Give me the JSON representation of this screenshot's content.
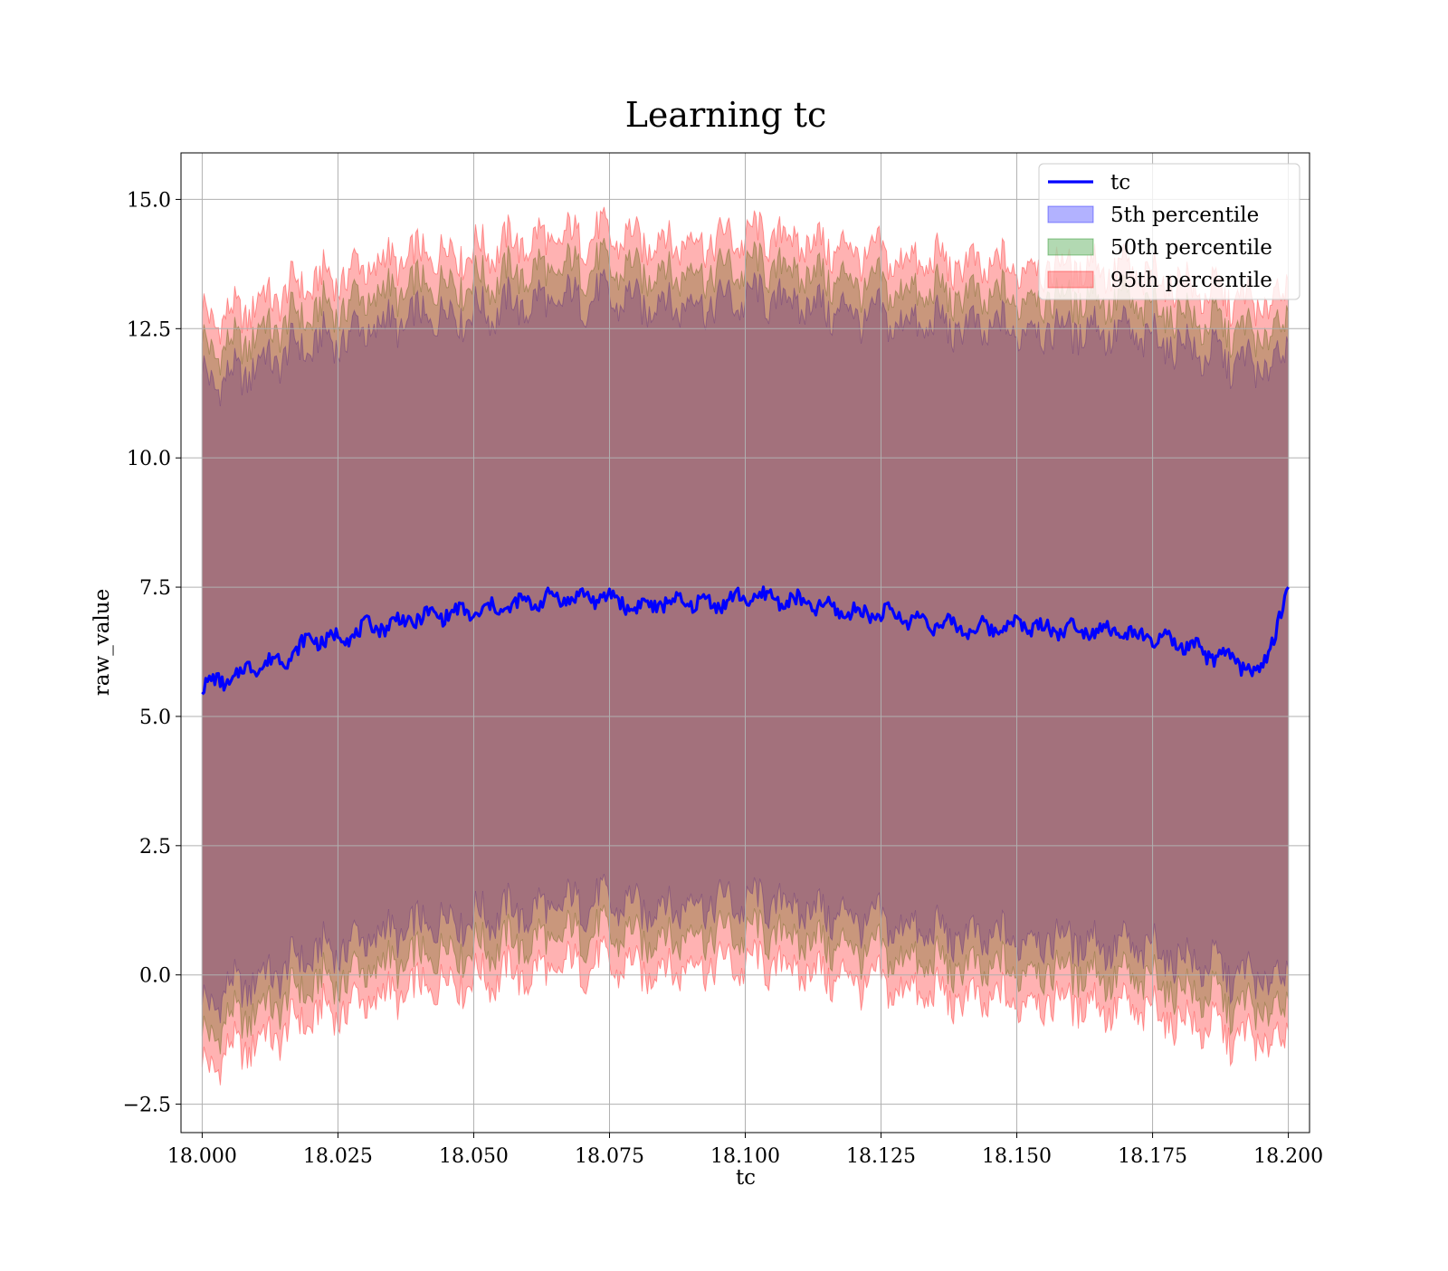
{
  "chart_data": {
    "type": "line",
    "title": "Learning tc",
    "xlabel": "tc",
    "ylabel": "raw_value",
    "xlim": [
      17.9961,
      18.2039
    ],
    "ylim": [
      -3.05,
      15.9
    ],
    "x_ticks": [
      18.0,
      18.025,
      18.05,
      18.075,
      18.1,
      18.125,
      18.15,
      18.175,
      18.2
    ],
    "x_tick_labels": [
      "18.000",
      "18.025",
      "18.050",
      "18.075",
      "18.100",
      "18.125",
      "18.150",
      "18.175",
      "18.200"
    ],
    "y_ticks": [
      -2.5,
      0.0,
      2.5,
      5.0,
      7.5,
      10.0,
      12.5,
      15.0
    ],
    "y_tick_labels": [
      "−2.5",
      "0.0",
      "2.5",
      "5.0",
      "7.5",
      "10.0",
      "12.5",
      "15.0"
    ],
    "grid": true,
    "legend_position": "top-right",
    "x": [
      18.0,
      18.005,
      18.01,
      18.015,
      18.02,
      18.025,
      18.03,
      18.035,
      18.04,
      18.045,
      18.05,
      18.055,
      18.06,
      18.065,
      18.07,
      18.075,
      18.08,
      18.085,
      18.09,
      18.095,
      18.1,
      18.105,
      18.11,
      18.115,
      18.12,
      18.125,
      18.13,
      18.135,
      18.14,
      18.145,
      18.15,
      18.155,
      18.16,
      18.165,
      18.17,
      18.175,
      18.18,
      18.185,
      18.19,
      18.195,
      18.2
    ],
    "series": [
      {
        "name": "tc",
        "kind": "line",
        "color": "#0000ff",
        "values": [
          5.6,
          5.7,
          6.0,
          6.1,
          6.5,
          6.5,
          6.7,
          6.8,
          6.9,
          7.0,
          7.0,
          7.1,
          7.2,
          7.3,
          7.3,
          7.3,
          7.1,
          7.2,
          7.2,
          7.2,
          7.3,
          7.3,
          7.2,
          7.1,
          7.0,
          7.0,
          6.9,
          6.8,
          6.7,
          6.7,
          6.8,
          6.7,
          6.7,
          6.7,
          6.6,
          6.5,
          6.4,
          6.2,
          6.1,
          5.8,
          7.5
        ]
      },
      {
        "name": "5th percentile",
        "kind": "band",
        "color": "#0000ff",
        "lower": [
          -0.6,
          -0.3,
          -0.1,
          0.1,
          0.4,
          0.5,
          0.7,
          0.8,
          0.9,
          1.1,
          1.1,
          1.2,
          1.2,
          1.3,
          1.4,
          1.4,
          1.3,
          1.3,
          1.4,
          1.4,
          1.4,
          1.4,
          1.3,
          1.2,
          1.1,
          1.0,
          0.9,
          0.8,
          0.7,
          0.7,
          0.7,
          0.7,
          0.7,
          0.6,
          0.5,
          0.5,
          0.3,
          0.2,
          0.0,
          -0.1,
          0.0
        ],
        "upper": [
          11.6,
          11.5,
          11.8,
          12.0,
          12.2,
          12.3,
          12.5,
          12.6,
          12.7,
          12.8,
          12.8,
          12.9,
          13.0,
          13.0,
          13.1,
          13.1,
          13.0,
          13.0,
          13.0,
          13.0,
          13.1,
          13.1,
          13.0,
          12.9,
          12.8,
          12.7,
          12.6,
          12.6,
          12.5,
          12.5,
          12.5,
          12.5,
          12.5,
          12.5,
          12.4,
          12.3,
          12.2,
          12.0,
          11.9,
          11.7,
          12.1
        ]
      },
      {
        "name": "50th percentile",
        "kind": "band",
        "color": "#008000",
        "lower": [
          -1.2,
          -0.9,
          -0.7,
          -0.5,
          -0.2,
          -0.1,
          0.1,
          0.2,
          0.3,
          0.5,
          0.5,
          0.6,
          0.6,
          0.7,
          0.8,
          0.8,
          0.7,
          0.7,
          0.8,
          0.8,
          0.8,
          0.8,
          0.7,
          0.6,
          0.5,
          0.4,
          0.3,
          0.2,
          0.1,
          0.1,
          0.1,
          0.1,
          0.1,
          0.0,
          -0.1,
          -0.1,
          -0.3,
          -0.4,
          -0.6,
          -0.7,
          -0.6
        ],
        "upper": [
          12.2,
          12.1,
          12.4,
          12.6,
          12.8,
          12.9,
          13.1,
          13.2,
          13.3,
          13.4,
          13.4,
          13.5,
          13.6,
          13.6,
          13.7,
          13.7,
          13.6,
          13.6,
          13.6,
          13.6,
          13.7,
          13.7,
          13.6,
          13.5,
          13.4,
          13.3,
          13.2,
          13.2,
          13.1,
          13.1,
          13.1,
          13.1,
          13.1,
          13.1,
          13.0,
          12.9,
          12.8,
          12.6,
          12.5,
          12.3,
          12.7
        ]
      },
      {
        "name": "95th percentile",
        "kind": "band",
        "color": "#ff0000",
        "lower": [
          -1.8,
          -1.5,
          -1.3,
          -1.1,
          -0.8,
          -0.7,
          -0.5,
          -0.4,
          -0.3,
          -0.1,
          -0.1,
          0.0,
          0.0,
          0.1,
          0.2,
          0.2,
          0.1,
          0.1,
          0.2,
          0.2,
          0.2,
          0.2,
          0.1,
          0.0,
          -0.1,
          -0.2,
          -0.3,
          -0.4,
          -0.5,
          -0.5,
          -0.5,
          -0.5,
          -0.5,
          -0.6,
          -0.7,
          -0.7,
          -0.9,
          -1.0,
          -1.2,
          -1.3,
          -1.2
        ],
        "upper": [
          12.8,
          12.7,
          13.0,
          13.2,
          13.4,
          13.5,
          13.7,
          13.8,
          13.9,
          14.0,
          14.0,
          14.1,
          14.2,
          14.2,
          14.3,
          14.3,
          14.2,
          14.2,
          14.2,
          14.2,
          14.3,
          14.3,
          14.2,
          14.1,
          14.0,
          13.9,
          13.8,
          13.8,
          13.7,
          13.7,
          13.7,
          13.7,
          13.7,
          13.7,
          13.6,
          13.5,
          13.4,
          13.2,
          13.1,
          12.9,
          13.3
        ]
      }
    ]
  }
}
